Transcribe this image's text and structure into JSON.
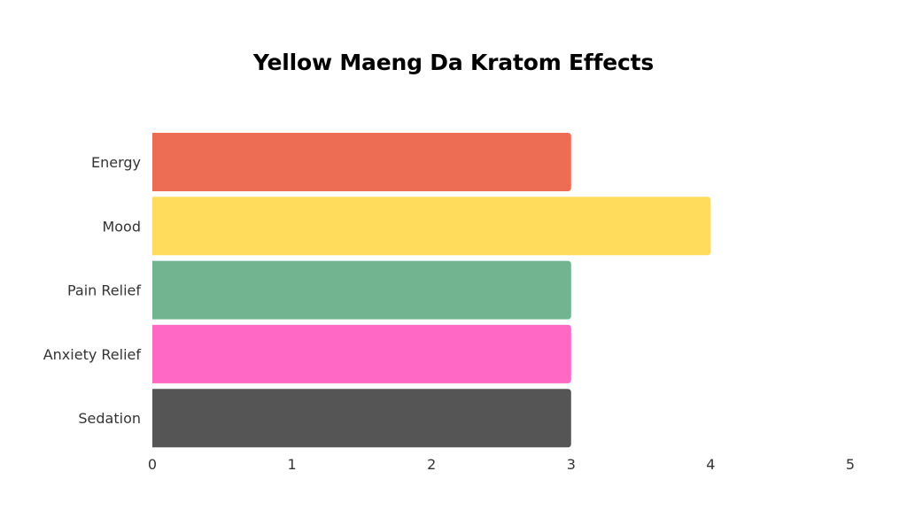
{
  "chart_data": {
    "type": "bar",
    "orientation": "horizontal",
    "title": "Yellow Maeng Da Kratom Effects",
    "xlabel": "",
    "ylabel": "",
    "categories": [
      "Energy",
      "Mood",
      "Pain Relief",
      "Anxiety Relief",
      "Sedation"
    ],
    "values": [
      3,
      4,
      3,
      3,
      3
    ],
    "colors": [
      "#EC6D53",
      "#FFDC5B",
      "#71B48F",
      "#FF68C4",
      "#555555"
    ],
    "xlim": [
      0,
      5
    ],
    "xticks": [
      "0",
      "1",
      "2",
      "3",
      "4",
      "5"
    ],
    "grid": false,
    "legend": "none"
  }
}
